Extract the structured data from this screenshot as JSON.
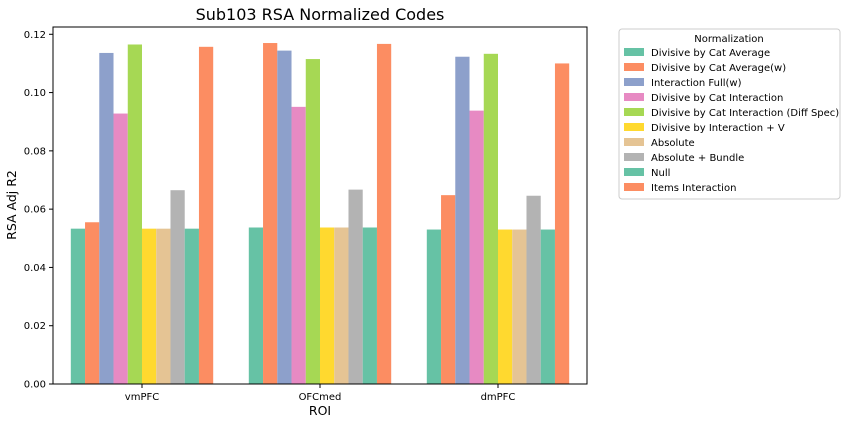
{
  "chart_data": {
    "type": "bar",
    "title": "Sub103 RSA Normalized Codes",
    "xlabel": "ROI",
    "ylabel": "RSA Adj R2",
    "categories": [
      "vmPFC",
      "OFCmed",
      "dmPFC"
    ],
    "ylim": [
      0,
      0.1225
    ],
    "yticks": [
      "0.00",
      "0.02",
      "0.04",
      "0.06",
      "0.08",
      "0.10",
      "0.12"
    ],
    "ytick_values": [
      0,
      0.02,
      0.04,
      0.06,
      0.08,
      0.1,
      0.12
    ],
    "grid": false,
    "legend": {
      "title": "Normalization",
      "placement": "outside-right"
    },
    "series": [
      {
        "name": "Divisive by Cat Average",
        "color": "#66c2a5",
        "values": [
          0.0533,
          0.0537,
          0.053
        ]
      },
      {
        "name": "Divisive by Cat Average(w)",
        "color": "#fc8d62",
        "values": [
          0.0555,
          0.117,
          0.0648
        ]
      },
      {
        "name": "Interaction Full(w)",
        "color": "#8da0cb",
        "values": [
          0.1136,
          0.1144,
          0.1123
        ]
      },
      {
        "name": "Divisive by Cat Interaction",
        "color": "#e78ac3",
        "values": [
          0.0928,
          0.0951,
          0.0938
        ]
      },
      {
        "name": "Divisive by Cat Interaction (Diff Spec)",
        "color": "#a6d854",
        "values": [
          0.1165,
          0.1115,
          0.1133
        ]
      },
      {
        "name": "Divisive by Interaction + V",
        "color": "#ffd92f",
        "values": [
          0.0533,
          0.0537,
          0.053
        ]
      },
      {
        "name": "Absolute",
        "color": "#e5c494",
        "values": [
          0.0533,
          0.0537,
          0.053
        ]
      },
      {
        "name": "Absolute + Bundle",
        "color": "#b3b3b3",
        "values": [
          0.0665,
          0.0667,
          0.0646
        ]
      },
      {
        "name": "Null",
        "color": "#66c2a5",
        "values": [
          0.0533,
          0.0537,
          0.053
        ]
      },
      {
        "name": "Items Interaction",
        "color": "#fc8d62",
        "values": [
          0.1157,
          0.1167,
          0.11
        ]
      }
    ]
  }
}
